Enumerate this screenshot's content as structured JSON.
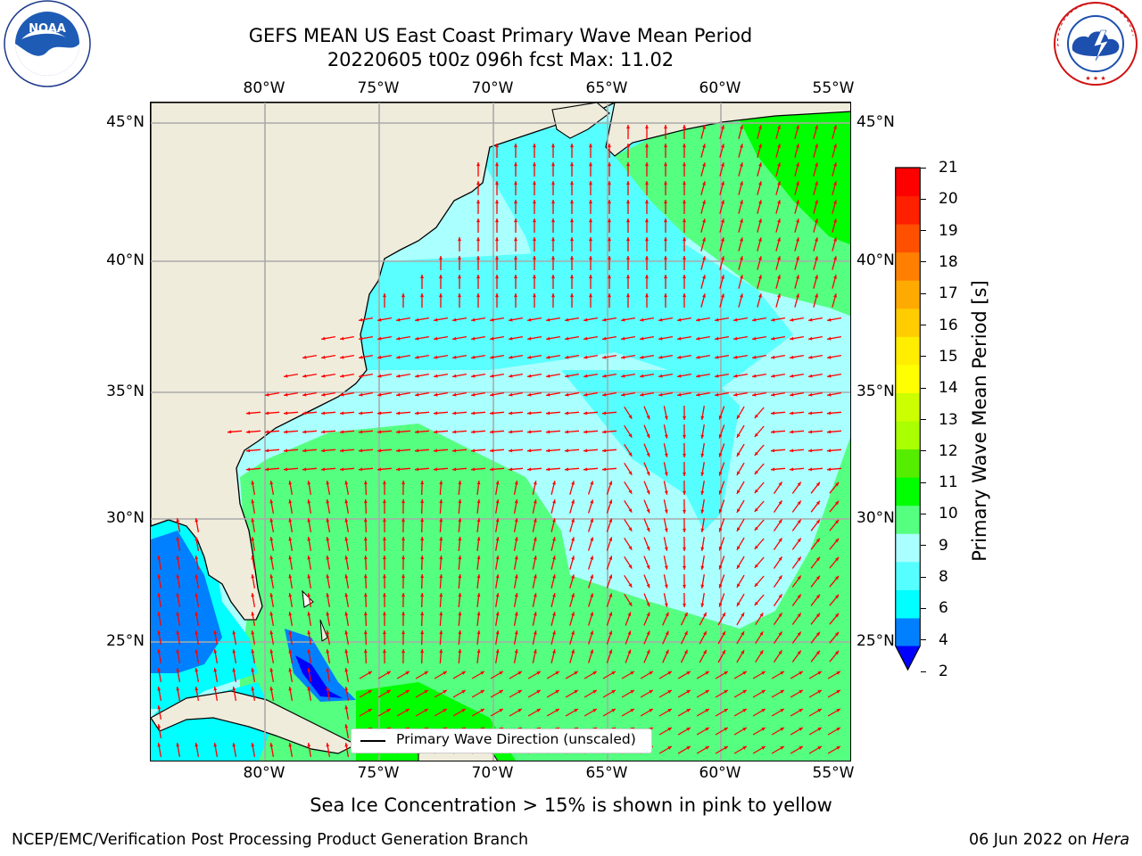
{
  "header": {
    "title_line1": "GEFS MEAN US East Coast Primary Wave Mean Period",
    "title_line2": "20220605 t00z 096h fcst   Max: 11.02"
  },
  "logos": {
    "left": "NOAA",
    "left_ring_text": "NATIONAL OCEANIC AND ATMOSPHERIC ADMINISTRATION · U.S. DEPARTMENT OF COMMERCE",
    "right_ring_text": "NATIONAL WEATHER SERVICE"
  },
  "map": {
    "lon_range": [
      -85,
      -54
    ],
    "lat_range": [
      20.5,
      46
    ],
    "lon_ticks": [
      "80°W",
      "75°W",
      "70°W",
      "65°W",
      "60°W",
      "55°W"
    ],
    "lat_ticks": [
      "45°N",
      "40°N",
      "35°N",
      "30°N",
      "25°N"
    ],
    "grid": true,
    "arrow_color": "#ff0000",
    "land_color": "#efecdc"
  },
  "colorbar": {
    "label": "Primary Wave Mean Period [s]",
    "tick_labels": [
      "21",
      "20",
      "19",
      "18",
      "17",
      "16",
      "15",
      "14",
      "13",
      "12",
      "11",
      "10",
      "9",
      "8",
      "6",
      "4",
      "2"
    ],
    "colors": [
      "#0000ff",
      "#0080ff",
      "#00ffff",
      "#55ffff",
      "#aaffff",
      "#55ff80",
      "#00ff00",
      "#55ee00",
      "#aaff00",
      "#ccff00",
      "#ffff00",
      "#ffee00",
      "#ffcc00",
      "#ffaa00",
      "#ff8000",
      "#ff5000",
      "#ff2000",
      "#ff0000"
    ],
    "extend": "min"
  },
  "legend": {
    "label": "Primary Wave Direction (unscaled)"
  },
  "note": "Sea Ice Concentration > 15% is shown in pink to yellow",
  "footer": {
    "left": "NCEP/EMC/Verification Post Processing Product Generation Branch",
    "right_date": "06 Jun 2022 on ",
    "right_machine": "Hera"
  }
}
